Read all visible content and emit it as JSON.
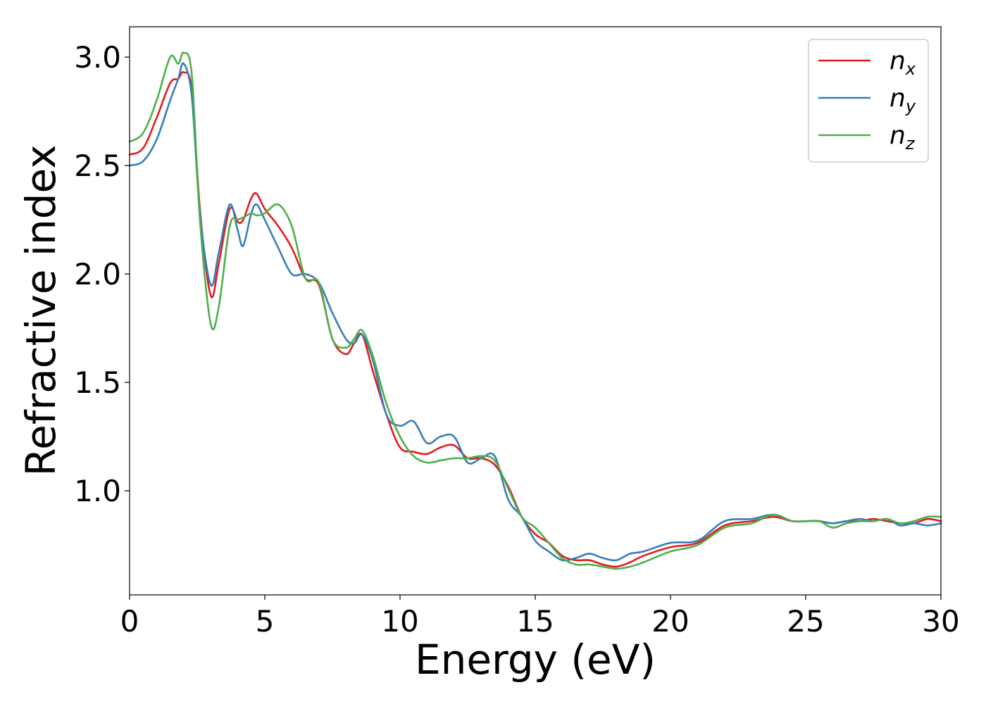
{
  "chart_data": {
    "type": "line",
    "title": "",
    "xlabel": "Energy (eV)",
    "ylabel": "Refractive index",
    "xlim": [
      0,
      30
    ],
    "ylim": [
      0.52,
      3.14
    ],
    "xticks": [
      0,
      5,
      10,
      15,
      20,
      25,
      30
    ],
    "xtick_labels": [
      "0",
      "5",
      "10",
      "15",
      "20",
      "25",
      "30"
    ],
    "yticks": [
      1.0,
      1.5,
      2.0,
      2.5,
      3.0
    ],
    "ytick_labels": [
      "1.0",
      "1.5",
      "2.0",
      "2.5",
      "3.0"
    ],
    "grid": false,
    "legend_position": "top-right",
    "series": [
      {
        "name": "n",
        "subscript": "x",
        "color": "#e41a1c",
        "x": [
          0,
          0.5,
          1.0,
          1.5,
          1.8,
          2.0,
          2.3,
          2.6,
          3.0,
          3.3,
          3.7,
          4.0,
          4.2,
          4.5,
          4.7,
          5.0,
          5.5,
          6.0,
          6.5,
          7.0,
          7.5,
          8.0,
          8.3,
          8.6,
          9.0,
          9.5,
          10.0,
          10.5,
          11.0,
          11.5,
          12.0,
          12.5,
          13.0,
          13.5,
          14.0,
          14.5,
          15.0,
          15.5,
          16.0,
          16.5,
          17.0,
          17.5,
          18.0,
          18.5,
          19.0,
          20.0,
          21.0,
          22.0,
          23.0,
          23.8,
          24.5,
          25.0,
          25.5,
          26.0,
          26.5,
          27.0,
          27.5,
          28.0,
          28.5,
          29.0,
          29.5,
          30.0
        ],
        "y": [
          2.55,
          2.58,
          2.72,
          2.88,
          2.9,
          2.93,
          2.85,
          2.3,
          1.9,
          2.05,
          2.3,
          2.24,
          2.25,
          2.35,
          2.37,
          2.3,
          2.22,
          2.12,
          1.98,
          1.95,
          1.7,
          1.63,
          1.68,
          1.72,
          1.55,
          1.35,
          1.2,
          1.18,
          1.17,
          1.2,
          1.21,
          1.15,
          1.15,
          1.12,
          1.02,
          0.88,
          0.8,
          0.76,
          0.7,
          0.68,
          0.68,
          0.66,
          0.65,
          0.67,
          0.7,
          0.74,
          0.76,
          0.84,
          0.86,
          0.88,
          0.86,
          0.86,
          0.86,
          0.85,
          0.86,
          0.86,
          0.87,
          0.86,
          0.85,
          0.85,
          0.87,
          0.86
        ]
      },
      {
        "name": "n",
        "subscript": "y",
        "color": "#377eb8",
        "x": [
          0,
          0.5,
          1.0,
          1.5,
          1.8,
          2.0,
          2.3,
          2.6,
          3.0,
          3.3,
          3.7,
          4.0,
          4.2,
          4.5,
          4.7,
          5.0,
          5.5,
          6.0,
          6.5,
          7.0,
          7.5,
          8.0,
          8.3,
          8.6,
          9.0,
          9.5,
          10.0,
          10.5,
          11.0,
          11.5,
          12.0,
          12.5,
          13.0,
          13.5,
          14.0,
          14.5,
          15.0,
          15.5,
          16.0,
          16.5,
          17.0,
          17.5,
          18.0,
          18.5,
          19.0,
          20.0,
          21.0,
          22.0,
          23.0,
          23.8,
          24.5,
          25.0,
          25.5,
          26.0,
          26.5,
          27.0,
          27.5,
          28.0,
          28.5,
          29.0,
          29.5,
          30.0
        ],
        "y": [
          2.5,
          2.52,
          2.62,
          2.8,
          2.9,
          2.97,
          2.82,
          2.28,
          1.95,
          2.1,
          2.32,
          2.2,
          2.13,
          2.28,
          2.32,
          2.25,
          2.12,
          2.0,
          2.0,
          1.96,
          1.82,
          1.7,
          1.68,
          1.72,
          1.6,
          1.35,
          1.3,
          1.32,
          1.22,
          1.25,
          1.25,
          1.13,
          1.15,
          1.16,
          0.96,
          0.88,
          0.77,
          0.72,
          0.68,
          0.69,
          0.71,
          0.69,
          0.68,
          0.71,
          0.72,
          0.76,
          0.77,
          0.86,
          0.87,
          0.89,
          0.86,
          0.86,
          0.86,
          0.85,
          0.86,
          0.87,
          0.86,
          0.87,
          0.84,
          0.85,
          0.84,
          0.85
        ]
      },
      {
        "name": "n",
        "subscript": "z",
        "color": "#4daf4a",
        "x": [
          0,
          0.5,
          1.0,
          1.5,
          1.8,
          2.0,
          2.3,
          2.6,
          3.0,
          3.3,
          3.7,
          4.0,
          4.2,
          4.5,
          4.7,
          5.0,
          5.5,
          6.0,
          6.5,
          7.0,
          7.5,
          8.0,
          8.3,
          8.6,
          9.0,
          9.5,
          10.0,
          10.5,
          11.0,
          11.5,
          12.0,
          12.5,
          13.0,
          13.5,
          14.0,
          14.5,
          15.0,
          15.5,
          16.0,
          16.5,
          17.0,
          17.5,
          18.0,
          18.5,
          19.0,
          20.0,
          21.0,
          22.0,
          23.0,
          23.8,
          24.5,
          25.0,
          25.5,
          26.0,
          26.5,
          27.0,
          27.5,
          28.0,
          28.5,
          29.0,
          29.5,
          30.0
        ],
        "y": [
          2.61,
          2.65,
          2.8,
          3.0,
          2.97,
          3.02,
          2.92,
          2.25,
          1.77,
          1.85,
          2.22,
          2.25,
          2.26,
          2.28,
          2.27,
          2.28,
          2.32,
          2.22,
          1.98,
          1.96,
          1.7,
          1.66,
          1.7,
          1.74,
          1.62,
          1.4,
          1.25,
          1.16,
          1.13,
          1.14,
          1.15,
          1.15,
          1.16,
          1.14,
          1.01,
          0.88,
          0.83,
          0.76,
          0.69,
          0.66,
          0.66,
          0.65,
          0.64,
          0.65,
          0.67,
          0.72,
          0.75,
          0.83,
          0.85,
          0.89,
          0.86,
          0.86,
          0.86,
          0.83,
          0.85,
          0.86,
          0.86,
          0.87,
          0.85,
          0.86,
          0.88,
          0.88
        ]
      }
    ]
  }
}
